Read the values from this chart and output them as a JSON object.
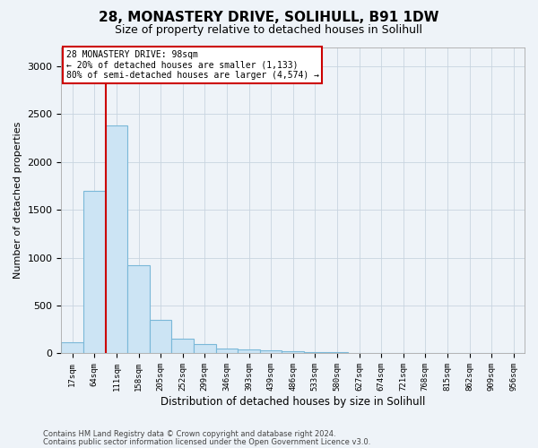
{
  "title1": "28, MONASTERY DRIVE, SOLIHULL, B91 1DW",
  "title2": "Size of property relative to detached houses in Solihull",
  "xlabel": "Distribution of detached houses by size in Solihull",
  "ylabel": "Number of detached properties",
  "categories": [
    "17sqm",
    "64sqm",
    "111sqm",
    "158sqm",
    "205sqm",
    "252sqm",
    "299sqm",
    "346sqm",
    "393sqm",
    "439sqm",
    "486sqm",
    "533sqm",
    "580sqm",
    "627sqm",
    "674sqm",
    "721sqm",
    "768sqm",
    "815sqm",
    "862sqm",
    "909sqm",
    "956sqm"
  ],
  "values": [
    120,
    1700,
    2380,
    920,
    350,
    155,
    100,
    55,
    40,
    30,
    20,
    15,
    10,
    8,
    5,
    3,
    2,
    2,
    2,
    2,
    2
  ],
  "bar_color": "#cce4f4",
  "bar_edge_color": "#7ab8d8",
  "red_line_color": "#cc0000",
  "red_line_x": 1.5,
  "annotation_text": "28 MONASTERY DRIVE: 98sqm\n← 20% of detached houses are smaller (1,133)\n80% of semi-detached houses are larger (4,574) →",
  "annotation_box_color": "#ffffff",
  "annotation_box_edge": "#cc0000",
  "footer1": "Contains HM Land Registry data © Crown copyright and database right 2024.",
  "footer2": "Contains public sector information licensed under the Open Government Licence v3.0.",
  "ylim": [
    0,
    3200
  ],
  "yticks": [
    0,
    500,
    1000,
    1500,
    2000,
    2500,
    3000
  ],
  "background_color": "#eef3f8",
  "title1_fontsize": 11,
  "title2_fontsize": 9
}
